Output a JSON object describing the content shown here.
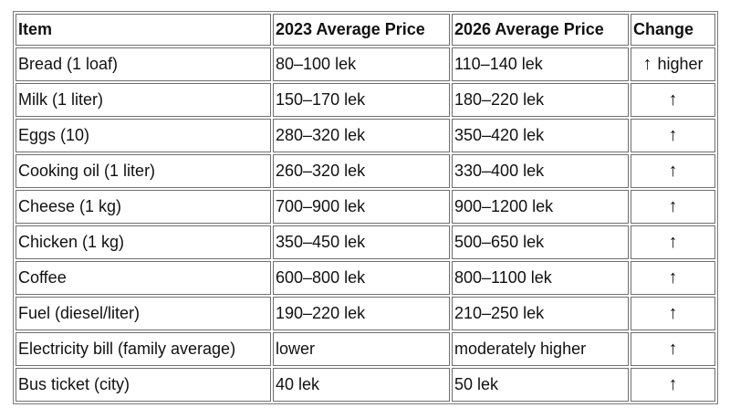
{
  "table": {
    "headers": {
      "item": "Item",
      "price_2023": "2023 Average Price",
      "price_2026": "2026 Average Price",
      "change": "Change"
    },
    "rows": [
      {
        "item": "Bread (1 loaf)",
        "price_2023": "80–100 lek",
        "price_2026": "110–140 lek",
        "change_arrow": "↑",
        "change_text": "higher"
      },
      {
        "item": "Milk (1 liter)",
        "price_2023": "150–170 lek",
        "price_2026": "180–220 lek",
        "change_arrow": "↑",
        "change_text": ""
      },
      {
        "item": "Eggs (10)",
        "price_2023": "280–320 lek",
        "price_2026": "350–420 lek",
        "change_arrow": "↑",
        "change_text": ""
      },
      {
        "item": "Cooking oil (1 liter)",
        "price_2023": "260–320 lek",
        "price_2026": "330–400 lek",
        "change_arrow": "↑",
        "change_text": ""
      },
      {
        "item": "Cheese (1 kg)",
        "price_2023": "700–900 lek",
        "price_2026": "900–1200 lek",
        "change_arrow": "↑",
        "change_text": ""
      },
      {
        "item": "Chicken (1 kg)",
        "price_2023": "350–450 lek",
        "price_2026": "500–650 lek",
        "change_arrow": "↑",
        "change_text": ""
      },
      {
        "item": "Coffee",
        "price_2023": "600–800 lek",
        "price_2026": "800–1100 lek",
        "change_arrow": "↑",
        "change_text": ""
      },
      {
        "item": "Fuel (diesel/liter)",
        "price_2023": "190–220 lek",
        "price_2026": "210–250 lek",
        "change_arrow": "↑",
        "change_text": ""
      },
      {
        "item": "Electricity bill (family average)",
        "price_2023": "lower",
        "price_2026": "moderately higher",
        "change_arrow": "↑",
        "change_text": ""
      },
      {
        "item": "Bus ticket (city)",
        "price_2023": "40 lek",
        "price_2026": "50 lek",
        "change_arrow": "↑",
        "change_text": ""
      }
    ]
  }
}
